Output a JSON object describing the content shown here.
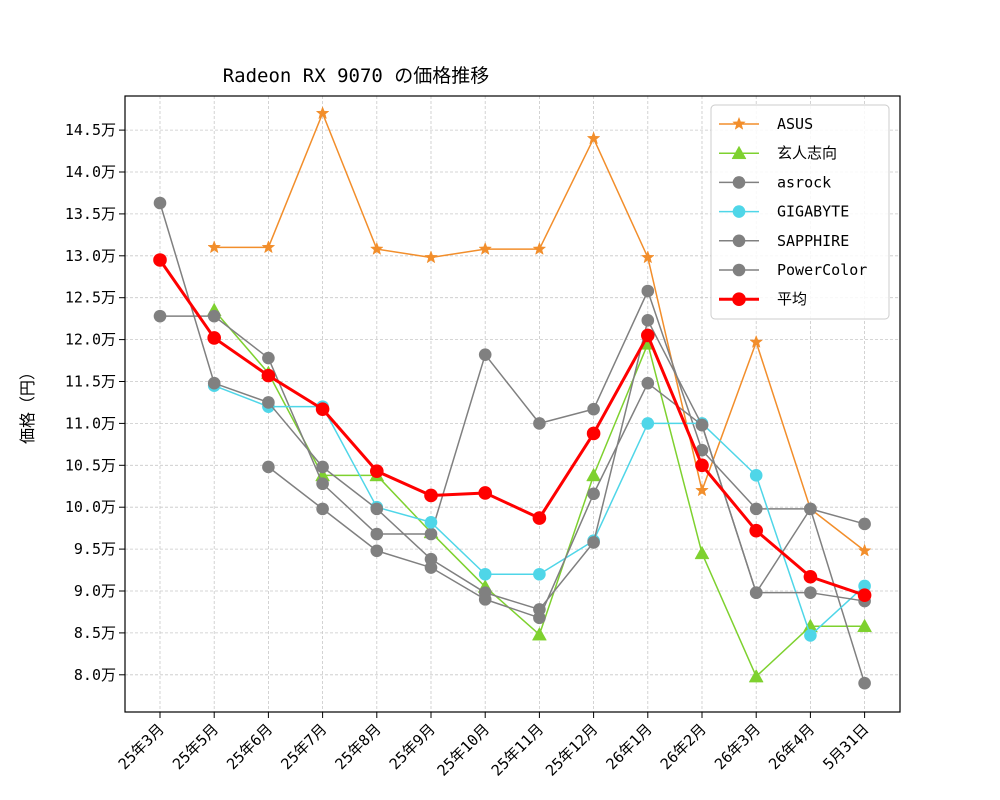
{
  "chart_data": {
    "type": "line",
    "title": "Radeon RX 9070 の価格推移",
    "xlabel": "",
    "ylabel": "価格（円）",
    "categories": [
      "25年3月",
      "25年5月",
      "25年6月",
      "25年7月",
      "25年8月",
      "25年9月",
      "25年10月",
      "25年11月",
      "25年12月",
      "26年1月",
      "26年2月",
      "26年3月",
      "26年4月",
      "5月31日"
    ],
    "ylim": [
      7.6,
      15.0
    ],
    "yticks": [
      8.0,
      8.5,
      9.0,
      9.5,
      10.0,
      10.5,
      11.0,
      11.5,
      12.0,
      12.5,
      13.0,
      13.5,
      14.0,
      14.5
    ],
    "ytick_labels": [
      "8.0万",
      "8.5万",
      "9.0万",
      "9.5万",
      "10.0万",
      "10.5万",
      "11.0万",
      "11.5万",
      "12.0万",
      "12.5万",
      "13.0万",
      "13.5万",
      "14.0万",
      "14.5万"
    ],
    "y_unit": "万円",
    "grid": true,
    "legend_position": "top-right",
    "series": [
      {
        "name": "ASUS",
        "color": "#f28e2b",
        "marker": "star",
        "values": [
          null,
          13.1,
          13.1,
          14.7,
          13.08,
          12.98,
          13.08,
          13.08,
          14.4,
          12.98,
          10.2,
          11.97,
          9.98,
          9.48
        ]
      },
      {
        "name": "玄人志向",
        "color": "#7ed12f",
        "marker": "triangle",
        "values": [
          null,
          12.35,
          11.6,
          10.38,
          10.38,
          9.7,
          9.05,
          8.48,
          10.38,
          11.95,
          9.45,
          7.98,
          8.58,
          8.58
        ]
      },
      {
        "name": "asrock",
        "color": "#808080",
        "marker": "circle",
        "values": [
          12.28,
          12.28,
          11.78,
          10.28,
          9.68,
          9.68,
          11.82,
          11.0,
          11.17,
          12.58,
          10.68,
          9.98,
          9.98,
          7.9
        ]
      },
      {
        "name": "GIGABYTE",
        "color": "#4fd6e8",
        "marker": "circle",
        "values": [
          null,
          11.45,
          11.2,
          11.2,
          10.0,
          9.82,
          9.2,
          9.2,
          9.6,
          11.0,
          11.0,
          10.38,
          8.47,
          9.06
        ]
      },
      {
        "name": "SAPPHIRE",
        "color": "#808080",
        "marker": "circle",
        "values": [
          13.63,
          11.48,
          11.25,
          10.48,
          9.98,
          9.38,
          8.98,
          8.78,
          9.58,
          12.23,
          10.98,
          8.98,
          8.98,
          8.88
        ]
      },
      {
        "name": "PowerColor",
        "color": "#808080",
        "marker": "circle",
        "values": [
          null,
          null,
          10.48,
          9.98,
          9.48,
          9.28,
          8.9,
          8.68,
          10.16,
          11.48,
          10.98,
          8.98,
          9.98,
          9.8
        ]
      },
      {
        "name": "平均",
        "color": "#ff0000",
        "marker": "circle",
        "values": [
          12.95,
          12.02,
          11.57,
          11.17,
          10.43,
          10.14,
          10.17,
          9.87,
          10.88,
          12.05,
          10.5,
          9.72,
          9.17,
          8.95
        ]
      }
    ]
  }
}
